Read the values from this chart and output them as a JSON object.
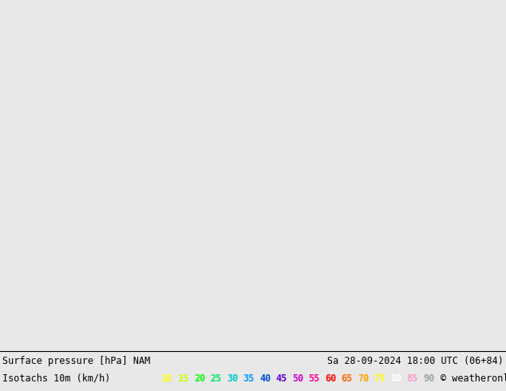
{
  "title_line1": "Surface pressure [hPa] NAM",
  "title_line2": "Isotachs 10m (km/h)",
  "date_str": "Sa 28-09-2024 18:00 UTC (06+84)",
  "copyright": "© weatheronline.co.uk",
  "legend_values": [
    "10",
    "15",
    "20",
    "25",
    "30",
    "35",
    "40",
    "45",
    "50",
    "55",
    "60",
    "65",
    "70",
    "75",
    "80",
    "85",
    "90"
  ],
  "legend_colors": [
    "#ffff00",
    "#c8ff00",
    "#00ff00",
    "#00e464",
    "#00c8c8",
    "#0096ff",
    "#0050dc",
    "#6400dc",
    "#c800c8",
    "#ff0096",
    "#ff0000",
    "#ff6400",
    "#ffa000",
    "#ffff00",
    "#ffffff",
    "#ff96c8",
    "#a0a0a0"
  ],
  "bg_color": "#e8e8e8",
  "map_bg_light": "#f0f0e8",
  "map_bg_green": "#c8e0b0",
  "figwidth": 6.34,
  "figheight": 4.9,
  "dpi": 100
}
